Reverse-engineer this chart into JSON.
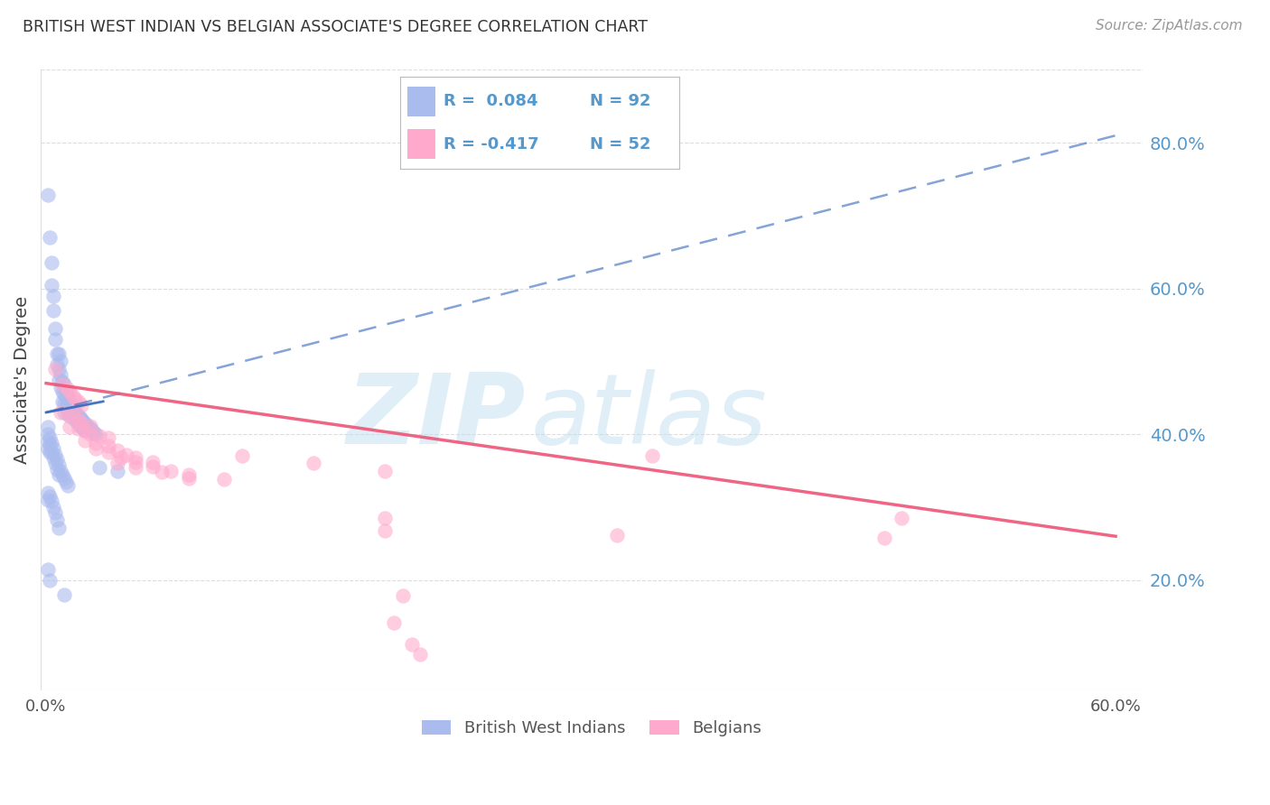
{
  "title": "BRITISH WEST INDIAN VS BELGIAN ASSOCIATE'S DEGREE CORRELATION CHART",
  "source": "Source: ZipAtlas.com",
  "ylabel": "Associate's Degree",
  "legend_blue_label": "British West Indians",
  "legend_pink_label": "Belgians",
  "xlim": [
    -0.003,
    0.615
  ],
  "ylim": [
    0.05,
    0.9
  ],
  "blue_color": "#AABBEE",
  "blue_line_color": "#3366BB",
  "blue_solid_line": [
    [
      0.0,
      0.43
    ],
    [
      0.032,
      0.445
    ]
  ],
  "blue_dash_line": [
    [
      0.0,
      0.43
    ],
    [
      0.6,
      0.81
    ]
  ],
  "pink_color": "#FFAACC",
  "pink_line_color": "#EE5577",
  "pink_solid_line": [
    [
      0.0,
      0.47
    ],
    [
      0.6,
      0.26
    ]
  ],
  "watermark_top": "ZIP",
  "watermark_bot": "atlas",
  "watermark_color": "#BBDDEE",
  "grid_color": "#DDDDDD",
  "title_color": "#333333",
  "right_tick_color": "#5599CC",
  "y_ticks_right": [
    0.2,
    0.4,
    0.6,
    0.8
  ],
  "y_tick_labels_right": [
    "20.0%",
    "40.0%",
    "60.0%",
    "80.0%"
  ],
  "x_ticks": [
    0.0,
    0.1,
    0.2,
    0.3,
    0.4,
    0.5,
    0.6
  ],
  "x_tick_labels": [
    "0.0%",
    "",
    "",
    "",
    "",
    "",
    "60.0%"
  ],
  "blue_points": [
    [
      0.001,
      0.728
    ],
    [
      0.002,
      0.67
    ],
    [
      0.003,
      0.635
    ],
    [
      0.003,
      0.605
    ],
    [
      0.004,
      0.59
    ],
    [
      0.004,
      0.57
    ],
    [
      0.005,
      0.545
    ],
    [
      0.005,
      0.53
    ],
    [
      0.006,
      0.51
    ],
    [
      0.006,
      0.495
    ],
    [
      0.007,
      0.49
    ],
    [
      0.007,
      0.475
    ],
    [
      0.007,
      0.51
    ],
    [
      0.008,
      0.5
    ],
    [
      0.008,
      0.482
    ],
    [
      0.008,
      0.465
    ],
    [
      0.009,
      0.472
    ],
    [
      0.009,
      0.458
    ],
    [
      0.009,
      0.445
    ],
    [
      0.01,
      0.468
    ],
    [
      0.01,
      0.455
    ],
    [
      0.01,
      0.442
    ],
    [
      0.01,
      0.43
    ],
    [
      0.011,
      0.458
    ],
    [
      0.011,
      0.448
    ],
    [
      0.011,
      0.438
    ],
    [
      0.012,
      0.45
    ],
    [
      0.012,
      0.44
    ],
    [
      0.012,
      0.43
    ],
    [
      0.013,
      0.445
    ],
    [
      0.013,
      0.435
    ],
    [
      0.013,
      0.425
    ],
    [
      0.014,
      0.44
    ],
    [
      0.014,
      0.43
    ],
    [
      0.015,
      0.435
    ],
    [
      0.015,
      0.425
    ],
    [
      0.016,
      0.43
    ],
    [
      0.016,
      0.42
    ],
    [
      0.017,
      0.428
    ],
    [
      0.017,
      0.418
    ],
    [
      0.018,
      0.425
    ],
    [
      0.018,
      0.415
    ],
    [
      0.019,
      0.422
    ],
    [
      0.019,
      0.412
    ],
    [
      0.02,
      0.42
    ],
    [
      0.02,
      0.41
    ],
    [
      0.021,
      0.418
    ],
    [
      0.021,
      0.408
    ],
    [
      0.022,
      0.415
    ],
    [
      0.022,
      0.405
    ],
    [
      0.023,
      0.412
    ],
    [
      0.024,
      0.41
    ],
    [
      0.025,
      0.408
    ],
    [
      0.026,
      0.405
    ],
    [
      0.027,
      0.402
    ],
    [
      0.028,
      0.4
    ],
    [
      0.001,
      0.41
    ],
    [
      0.001,
      0.4
    ],
    [
      0.001,
      0.39
    ],
    [
      0.001,
      0.38
    ],
    [
      0.002,
      0.395
    ],
    [
      0.002,
      0.385
    ],
    [
      0.002,
      0.375
    ],
    [
      0.003,
      0.388
    ],
    [
      0.003,
      0.375
    ],
    [
      0.004,
      0.38
    ],
    [
      0.004,
      0.368
    ],
    [
      0.005,
      0.372
    ],
    [
      0.005,
      0.36
    ],
    [
      0.006,
      0.365
    ],
    [
      0.006,
      0.352
    ],
    [
      0.007,
      0.358
    ],
    [
      0.007,
      0.344
    ],
    [
      0.008,
      0.35
    ],
    [
      0.009,
      0.345
    ],
    [
      0.01,
      0.34
    ],
    [
      0.011,
      0.335
    ],
    [
      0.012,
      0.33
    ],
    [
      0.001,
      0.32
    ],
    [
      0.001,
      0.31
    ],
    [
      0.002,
      0.315
    ],
    [
      0.003,
      0.308
    ],
    [
      0.004,
      0.3
    ],
    [
      0.005,
      0.292
    ],
    [
      0.006,
      0.282
    ],
    [
      0.007,
      0.272
    ],
    [
      0.001,
      0.215
    ],
    [
      0.03,
      0.355
    ],
    [
      0.04,
      0.35
    ],
    [
      0.002,
      0.2
    ],
    [
      0.01,
      0.18
    ]
  ],
  "pink_points": [
    [
      0.005,
      0.49
    ],
    [
      0.009,
      0.468
    ],
    [
      0.012,
      0.462
    ],
    [
      0.013,
      0.458
    ],
    [
      0.015,
      0.452
    ],
    [
      0.016,
      0.448
    ],
    [
      0.018,
      0.445
    ],
    [
      0.02,
      0.44
    ],
    [
      0.008,
      0.43
    ],
    [
      0.012,
      0.428
    ],
    [
      0.015,
      0.425
    ],
    [
      0.018,
      0.42
    ],
    [
      0.02,
      0.415
    ],
    [
      0.025,
      0.412
    ],
    [
      0.013,
      0.41
    ],
    [
      0.018,
      0.408
    ],
    [
      0.022,
      0.405
    ],
    [
      0.025,
      0.4
    ],
    [
      0.03,
      0.398
    ],
    [
      0.035,
      0.395
    ],
    [
      0.022,
      0.392
    ],
    [
      0.028,
      0.388
    ],
    [
      0.035,
      0.384
    ],
    [
      0.04,
      0.378
    ],
    [
      0.045,
      0.372
    ],
    [
      0.05,
      0.368
    ],
    [
      0.06,
      0.362
    ],
    [
      0.028,
      0.38
    ],
    [
      0.035,
      0.375
    ],
    [
      0.042,
      0.368
    ],
    [
      0.05,
      0.362
    ],
    [
      0.06,
      0.356
    ],
    [
      0.07,
      0.35
    ],
    [
      0.08,
      0.345
    ],
    [
      0.1,
      0.338
    ],
    [
      0.04,
      0.36
    ],
    [
      0.05,
      0.355
    ],
    [
      0.065,
      0.348
    ],
    [
      0.08,
      0.34
    ],
    [
      0.11,
      0.37
    ],
    [
      0.15,
      0.36
    ],
    [
      0.19,
      0.35
    ],
    [
      0.34,
      0.37
    ],
    [
      0.19,
      0.285
    ],
    [
      0.48,
      0.285
    ],
    [
      0.19,
      0.268
    ],
    [
      0.32,
      0.262
    ],
    [
      0.47,
      0.258
    ],
    [
      0.2,
      0.178
    ],
    [
      0.195,
      0.142
    ],
    [
      0.205,
      0.112
    ],
    [
      0.21,
      0.098
    ]
  ]
}
